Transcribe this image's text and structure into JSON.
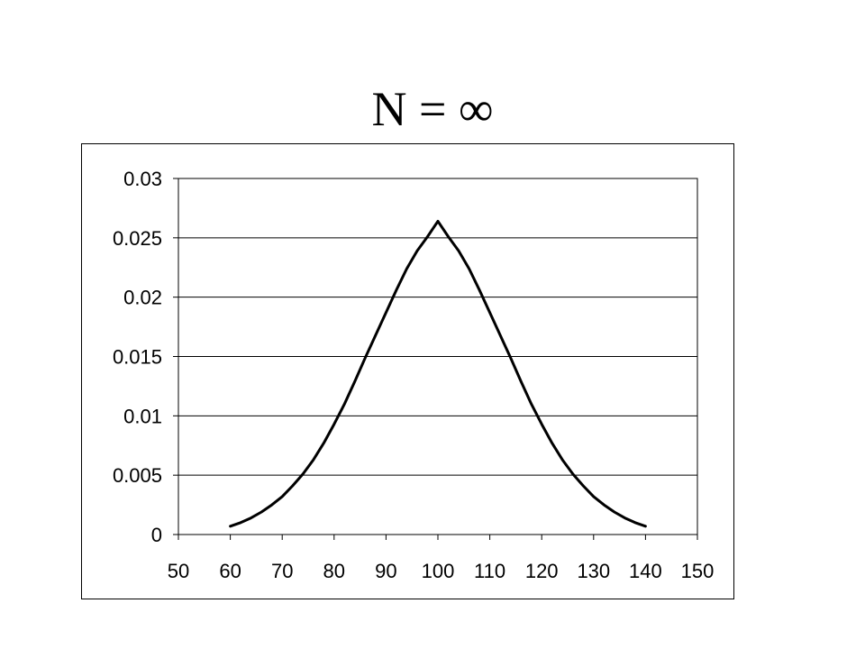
{
  "title": "N = ∞",
  "chart_data": {
    "type": "line",
    "title": "N = ∞",
    "xlabel": "",
    "ylabel": "",
    "xlim": [
      50,
      150
    ],
    "ylim": [
      0,
      0.03
    ],
    "x_ticks": [
      50,
      60,
      70,
      80,
      90,
      100,
      110,
      120,
      130,
      140,
      150
    ],
    "y_ticks": [
      0,
      0.005,
      0.01,
      0.015,
      0.02,
      0.025,
      0.03
    ],
    "y_tick_labels": [
      "0",
      "0.005",
      "0.01",
      "0.015",
      "0.02",
      "0.025",
      "0.03"
    ],
    "grid": "horizontal",
    "legend": "none",
    "line_color": "#000000",
    "series": [
      {
        "x": [
          60,
          62,
          64,
          66,
          68,
          70,
          72,
          74,
          76,
          78,
          80,
          82,
          84,
          86,
          88,
          90,
          92,
          94,
          96,
          98,
          100,
          102,
          104,
          106,
          108,
          110,
          112,
          114,
          116,
          118,
          120,
          122,
          124,
          126,
          128,
          130,
          132,
          134,
          136,
          138,
          140
        ],
        "values": [
          0.0007,
          0.001,
          0.0014,
          0.0019,
          0.0025,
          0.0032,
          0.0041,
          0.0051,
          0.0063,
          0.0077,
          0.0093,
          0.011,
          0.0129,
          0.0149,
          0.0168,
          0.0187,
          0.0206,
          0.0224,
          0.0239,
          0.0251,
          0.0264,
          0.0251,
          0.0239,
          0.0224,
          0.0206,
          0.0187,
          0.0168,
          0.0149,
          0.0129,
          0.011,
          0.0093,
          0.0077,
          0.0063,
          0.0051,
          0.0041,
          0.0032,
          0.0025,
          0.0019,
          0.0014,
          0.001,
          0.0007
        ]
      }
    ]
  }
}
